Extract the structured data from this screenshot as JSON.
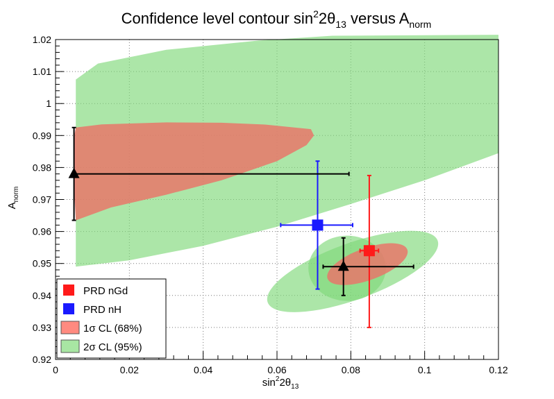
{
  "chart_data": {
    "type": "scatter",
    "title": {
      "main": "Confidence level contour sin",
      "sup": "2",
      "mid": "2θ",
      "sub": "13",
      "rest": " versus A",
      "sub2": "norm"
    },
    "xlabel": {
      "main": "sin",
      "sup": "2",
      "mid": "2θ",
      "sub": "13"
    },
    "ylabel": {
      "main": "A",
      "sub": "norm"
    },
    "xlim": [
      0,
      0.12
    ],
    "ylim": [
      0.92,
      1.02
    ],
    "grid": true,
    "x_ticks": [
      0,
      0.02,
      0.04,
      0.06,
      0.08,
      0.1,
      0.12
    ],
    "x_tick_labels": [
      "0",
      "0.02",
      "0.04",
      "0.06",
      "0.08",
      "0.1",
      "0.12"
    ],
    "y_ticks": [
      0.92,
      0.93,
      0.94,
      0.95,
      0.96,
      0.97,
      0.98,
      0.99,
      1.0,
      1.01,
      1.02
    ],
    "y_tick_labels": [
      "0.92",
      "0.93",
      "0.94",
      "0.95",
      "0.96",
      "0.97",
      "0.98",
      "0.99",
      "1",
      "1.01",
      "1.02"
    ],
    "contours": [
      {
        "name": "2σ band",
        "level": "2sigma",
        "color": "#7fd97a",
        "points": [
          [
            0.0055,
            1.0075
          ],
          [
            0.0115,
            1.0125
          ],
          [
            0.03,
            1.0168
          ],
          [
            0.055,
            1.0197
          ],
          [
            0.075,
            1.0212
          ],
          [
            0.12,
            1.0215
          ],
          [
            0.12,
            0.9845
          ],
          [
            0.1,
            0.976
          ],
          [
            0.08,
            0.9686
          ],
          [
            0.06,
            0.9615
          ],
          [
            0.04,
            0.9555
          ],
          [
            0.02,
            0.951
          ],
          [
            0.0055,
            0.949
          ]
        ]
      },
      {
        "name": "2σ lower ellipse",
        "level": "2sigma",
        "color": "#7fd97a",
        "ellipse": {
          "cx": 0.0805,
          "cy": 0.9475,
          "rx": 0.0245,
          "ry": 0.0088,
          "angle": 20
        }
      },
      {
        "name": "2σ inner ellipse",
        "level": "2sigma",
        "color": "#7fd97a",
        "ellipse": {
          "cx": 0.079,
          "cy": 0.9485,
          "rx": 0.0105,
          "ry": 0.0102,
          "angle": 0
        }
      },
      {
        "name": "1σ band",
        "level": "1sigma",
        "color": "#e8776a",
        "points": [
          [
            0.005,
            0.9895
          ],
          [
            0.0055,
            0.9925
          ],
          [
            0.0125,
            0.9935
          ],
          [
            0.03,
            0.9941
          ],
          [
            0.045,
            0.994
          ],
          [
            0.057,
            0.9934
          ],
          [
            0.0692,
            0.992
          ],
          [
            0.07,
            0.99
          ],
          [
            0.068,
            0.987
          ],
          [
            0.06,
            0.982
          ],
          [
            0.045,
            0.976
          ],
          [
            0.03,
            0.9715
          ],
          [
            0.015,
            0.9675
          ],
          [
            0.0055,
            0.9635
          ],
          [
            0.005,
            0.9735
          ]
        ]
      },
      {
        "name": "1σ lower ellipse",
        "level": "1sigma",
        "color": "#e8776a",
        "ellipse": {
          "cx": 0.0845,
          "cy": 0.9498,
          "rx": 0.0115,
          "ry": 0.005,
          "angle": 20
        }
      }
    ],
    "points": [
      {
        "name": "PRD nGd",
        "marker": "square",
        "color": "#ff1a1a",
        "x": 0.085,
        "y": 0.954,
        "xerr": [
          0.0025,
          0.0025
        ],
        "yerr": [
          0.024,
          0.0235
        ]
      },
      {
        "name": "PRD nH",
        "marker": "square",
        "color": "#1a1aff",
        "x": 0.071,
        "y": 0.962,
        "xerr": [
          0.01,
          0.0095
        ],
        "yerr": [
          0.02,
          0.02
        ]
      },
      {
        "name": "best fit 1",
        "marker": "triangle",
        "color": "#000000",
        "x": 0.005,
        "y": 0.978,
        "xerr": [
          0.0,
          0.0745
        ],
        "yerr": [
          0.0145,
          0.0145
        ]
      },
      {
        "name": "best fit 2",
        "marker": "triangle",
        "color": "#000000",
        "x": 0.078,
        "y": 0.949,
        "xerr": [
          0.0055,
          0.019
        ],
        "yerr": [
          0.009,
          0.009
        ]
      }
    ],
    "legend": {
      "position": "bottom-left",
      "entries": [
        {
          "label": "PRD nGd",
          "kind": "marker",
          "color": "#ff1a1a"
        },
        {
          "label": "PRD nH",
          "kind": "marker",
          "color": "#1a1aff"
        },
        {
          "label": "1σ CL (68%)",
          "kind": "fill",
          "color": "#ff8a80"
        },
        {
          "label": "2σ CL (95%)",
          "kind": "fill",
          "color": "#a8e6a3"
        }
      ]
    }
  }
}
